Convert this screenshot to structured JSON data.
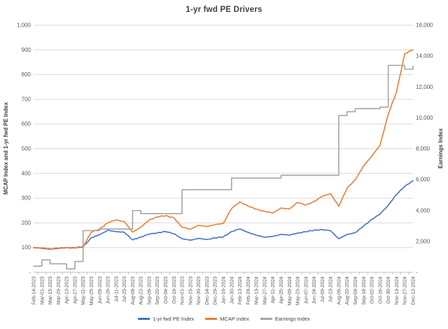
{
  "chart_data": {
    "type": "line",
    "title": "1-yr fwd PE Drivers",
    "categories": [
      "Feb-14-2023",
      "Mar-01-2023",
      "Mar-15-2023",
      "Mar-29-2023",
      "Apr-13-2023",
      "Apr-27-2023",
      "May-11-2023",
      "May-25-2023",
      "Jun-09-2023",
      "Jun-26-2023",
      "Jul-11-2023",
      "Jul-25-2023",
      "Aug-08-2023",
      "Aug-22-2023",
      "Sep-06-2023",
      "Sep-20-2023",
      "Oct-04-2023",
      "Oct-18-2023",
      "Nov-01-2023",
      "Nov-15-2023",
      "Nov-30-2023",
      "Dec-14-2023",
      "Dec-29-2023",
      "Jan-16-2024",
      "Jan-30-2024",
      "Feb-13-2024",
      "Feb-28-2024",
      "Mar-13-2024",
      "Mar-27-2024",
      "Apr-11-2024",
      "Apr-25-2024",
      "May-09-2024",
      "May-23-2024",
      "Jun-07-2024",
      "Jun-24-2024",
      "Jul-09-2024",
      "Jul-23-2024",
      "Aug-06-2024",
      "Aug-20-2024",
      "Sep-04-2024",
      "Sep-18-2024",
      "Oct-02-2024",
      "Oct-16-2024",
      "Oct-30-2024",
      "Nov-13-2024",
      "Nov-27-2024",
      "Dec-12-2024"
    ],
    "series": [
      {
        "name": "1-yr fwd PE Index",
        "color": "#4472C4",
        "axis": "left",
        "style": "line",
        "values": [
          100,
          98,
          95,
          97,
          100,
          99,
          103,
          140,
          152,
          170,
          165,
          162,
          131,
          143,
          154,
          160,
          165,
          156,
          136,
          130,
          137,
          133,
          139,
          143,
          165,
          175,
          162,
          150,
          142,
          145,
          154,
          150,
          159,
          164,
          170,
          173,
          168,
          136,
          153,
          160,
          187,
          214,
          235,
          272,
          315,
          348,
          371
        ]
      },
      {
        "name": "MCAP index",
        "color": "#ED7D31",
        "axis": "left",
        "style": "line",
        "values": [
          100,
          96,
          93,
          96,
          100,
          98,
          105,
          162,
          176,
          200,
          212,
          205,
          163,
          182,
          212,
          224,
          229,
          221,
          182,
          175,
          190,
          185,
          193,
          198,
          258,
          285,
          268,
          255,
          247,
          240,
          260,
          256,
          283,
          272,
          287,
          307,
          319,
          267,
          340,
          375,
          430,
          470,
          515,
          640,
          730,
          885,
          900
        ]
      },
      {
        "name": "Earnings Index",
        "color": "#A5A5A5",
        "axis": "right",
        "style": "step",
        "values": [
          400,
          800,
          550,
          550,
          220,
          700,
          2700,
          2700,
          2800,
          2800,
          2800,
          2800,
          4000,
          3800,
          3800,
          3800,
          3800,
          3800,
          5350,
          5350,
          5350,
          5350,
          5350,
          5350,
          6100,
          6100,
          6100,
          6100,
          6100,
          6100,
          6280,
          6280,
          6280,
          6280,
          6280,
          6280,
          6280,
          10150,
          10400,
          10600,
          10600,
          10600,
          10700,
          13400,
          13400,
          13150,
          13350
        ]
      }
    ],
    "left_axis": {
      "label": "MCAP Index and 1-yr fwd PE Index",
      "min": 0,
      "max": 1000,
      "step": 100,
      "tick_labels": [
        "-",
        "100",
        "200",
        "300",
        "400",
        "500",
        "600",
        "700",
        "800",
        "900",
        "1,000"
      ]
    },
    "right_axis": {
      "label": "Earnings Index",
      "min": 0,
      "max": 16000,
      "step": 2000,
      "tick_labels": [
        "-",
        "2,000",
        "4,000",
        "6,000",
        "8,000",
        "10,000",
        "12,000",
        "14,000",
        "16,000"
      ]
    },
    "legend_position": "bottom",
    "grid": true
  },
  "colors": {
    "background": "#FFFFFF",
    "gridline": "#D9D9D9",
    "axis_line": "#BFBFBF",
    "tick_text": "#595959",
    "title_text": "#404040"
  }
}
